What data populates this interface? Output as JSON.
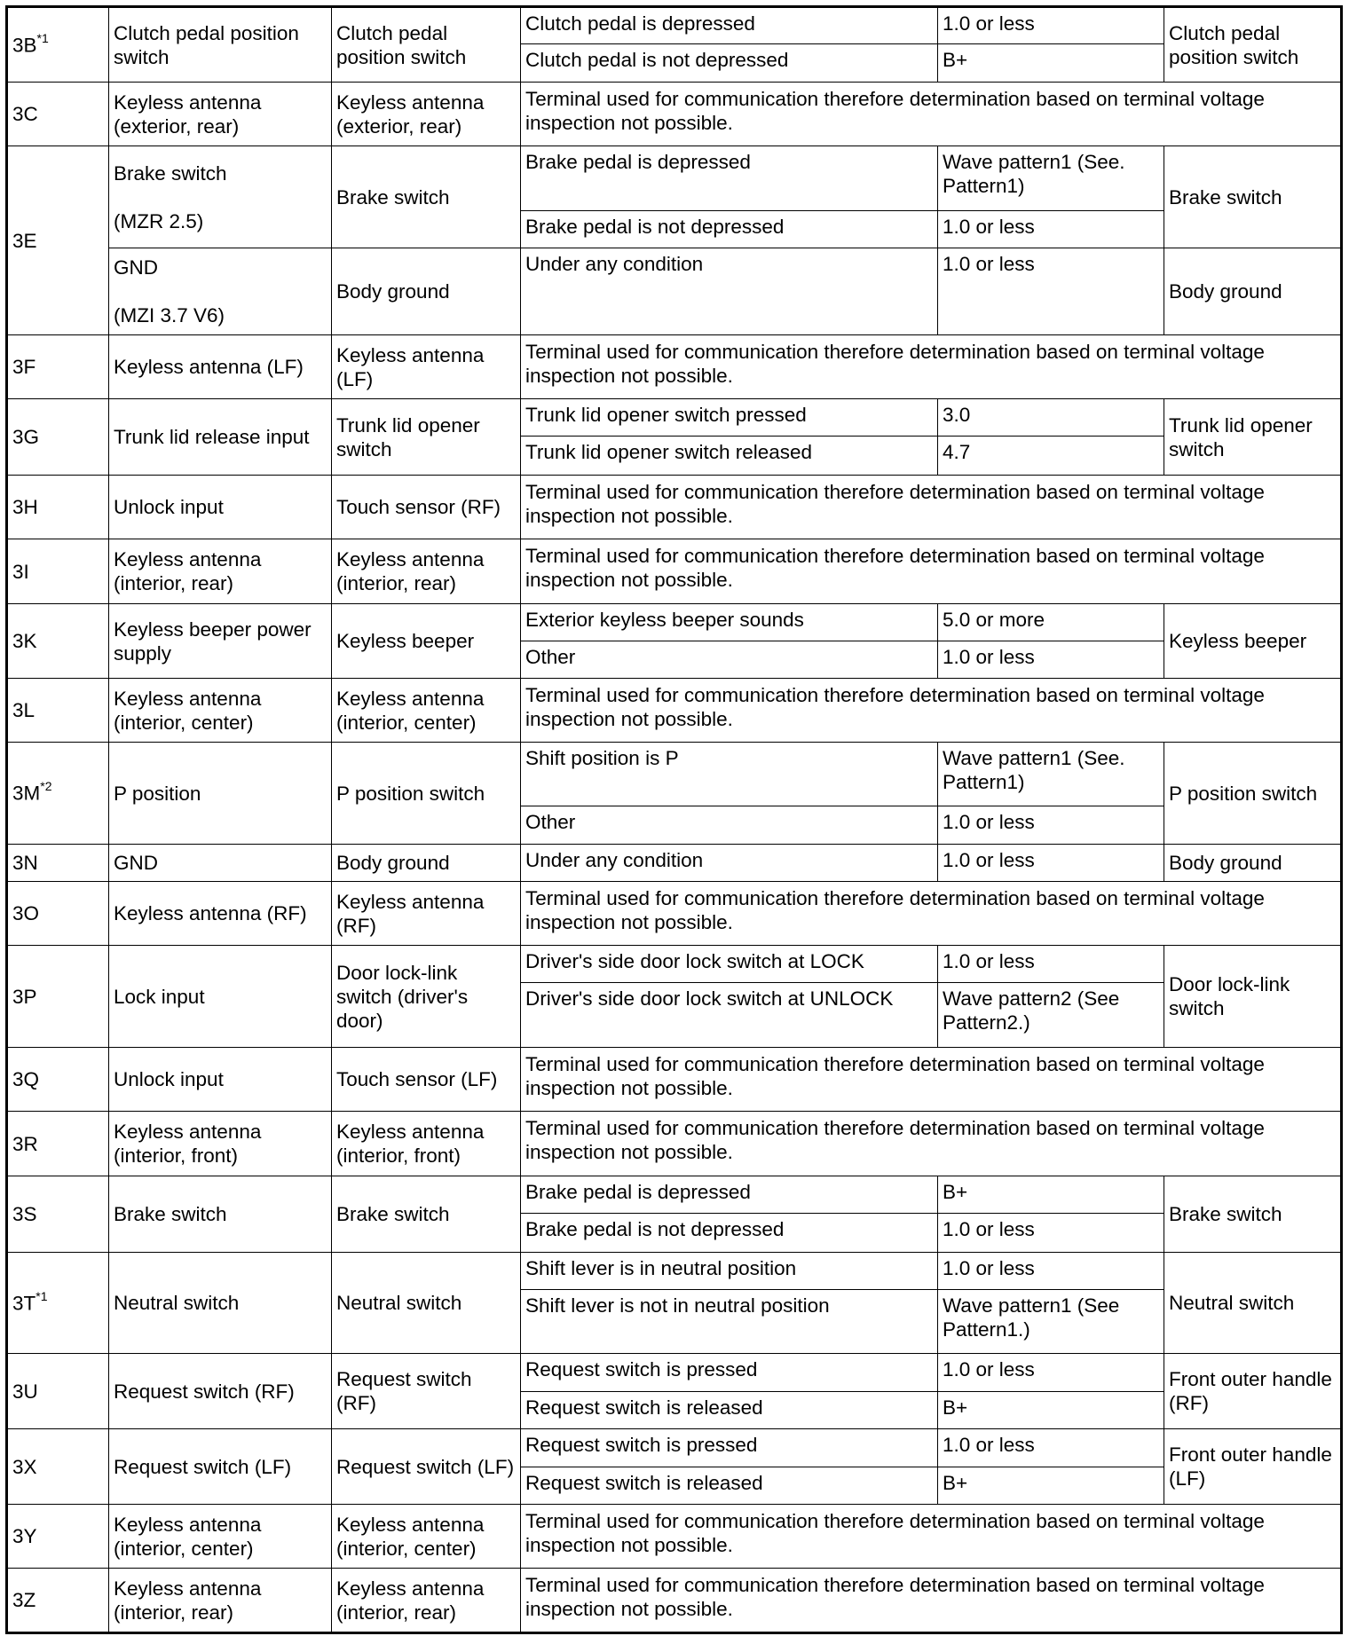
{
  "rows": [
    {
      "pin": "3B",
      "mark": "*1",
      "subs": [
        {
          "name": "Clutch pedal position switch",
          "connected": "Clutch pedal position switch",
          "action": "Clutch pedal position switch",
          "conditions": [
            {
              "condition": "Clutch pedal is depressed",
              "voltage": "1.0 or less"
            },
            {
              "condition": "Clutch pedal is not depressed",
              "voltage": "B+"
            }
          ]
        }
      ]
    },
    {
      "pin": "3C",
      "subs": [
        {
          "name": "Keyless antenna (exterior, rear)",
          "connected": "Keyless antenna (exterior, rear)",
          "note": "Terminal used for communication therefore determination based on terminal voltage inspection not possible."
        }
      ]
    },
    {
      "pin": "3E",
      "subs": [
        {
          "name": "Brake switch\n\n(MZR 2.5)",
          "connected": "Brake switch",
          "action": "Brake switch",
          "conditions": [
            {
              "condition": "Brake pedal is depressed",
              "voltage": "Wave pattern1 (See. Pattern1)"
            },
            {
              "condition": "Brake pedal is not depressed",
              "voltage": "1.0 or less"
            }
          ]
        },
        {
          "name": "GND\n\n(MZI 3.7 V6)",
          "connected": "Body ground",
          "action": "Body ground",
          "conditions": [
            {
              "condition": "Under any condition",
              "voltage": "1.0 or less"
            }
          ]
        }
      ]
    },
    {
      "pin": "3F",
      "subs": [
        {
          "name": "Keyless antenna (LF)",
          "connected": "Keyless antenna (LF)",
          "note": "Terminal used for communication therefore determination based on terminal voltage inspection not possible."
        }
      ]
    },
    {
      "pin": "3G",
      "subs": [
        {
          "name": "Trunk lid release input",
          "connected": "Trunk lid opener switch",
          "action": "Trunk lid opener switch",
          "conditions": [
            {
              "condition": "Trunk lid opener switch pressed",
              "voltage": "3.0"
            },
            {
              "condition": "Trunk lid opener switch released",
              "voltage": "4.7"
            }
          ]
        }
      ]
    },
    {
      "pin": "3H",
      "subs": [
        {
          "name": "Unlock input",
          "connected": "Touch sensor (RF)",
          "note": "Terminal used for communication therefore determination based on terminal voltage inspection not possible."
        }
      ]
    },
    {
      "pin": "3I",
      "subs": [
        {
          "name": "Keyless antenna (interior, rear)",
          "connected": "Keyless antenna (interior, rear)",
          "note": "Terminal used for communication therefore determination based on terminal voltage inspection not possible."
        }
      ]
    },
    {
      "pin": "3K",
      "subs": [
        {
          "name": "Keyless beeper power supply",
          "connected": "Keyless beeper",
          "action": "Keyless beeper",
          "conditions": [
            {
              "condition": "Exterior keyless beeper sounds",
              "voltage": "5.0 or more"
            },
            {
              "condition": "Other",
              "voltage": "1.0 or less"
            }
          ]
        }
      ]
    },
    {
      "pin": "3L",
      "subs": [
        {
          "name": "Keyless antenna (interior, center)",
          "connected": "Keyless antenna (interior, center)",
          "note": "Terminal used for communication therefore determination based on terminal voltage inspection not possible."
        }
      ]
    },
    {
      "pin": "3M",
      "mark": "*2",
      "subs": [
        {
          "name": "P position",
          "connected": "P position switch",
          "action": "P position switch",
          "conditions": [
            {
              "condition": "Shift position is P",
              "voltage": "Wave pattern1 (See. Pattern1)"
            },
            {
              "condition": "Other",
              "voltage": "1.0 or less"
            }
          ]
        }
      ]
    },
    {
      "pin": "3N",
      "subs": [
        {
          "name": "GND",
          "connected": "Body ground",
          "action": "Body ground",
          "conditions": [
            {
              "condition": "Under any condition",
              "voltage": "1.0 or less"
            }
          ]
        }
      ]
    },
    {
      "pin": "3O",
      "subs": [
        {
          "name": "Keyless antenna (RF)",
          "connected": "Keyless antenna (RF)",
          "note": "Terminal used for communication therefore determination based on terminal voltage inspection not possible."
        }
      ]
    },
    {
      "pin": "3P",
      "subs": [
        {
          "name": "Lock input",
          "connected": "Door lock-link switch (driver's door)",
          "action": "Door lock-link switch",
          "conditions": [
            {
              "condition": "Driver's side door lock switch at LOCK",
              "voltage": "1.0 or less"
            },
            {
              "condition": "Driver's side door lock switch at UNLOCK",
              "voltage": "Wave pattern2 (See Pattern2.)"
            }
          ]
        }
      ]
    },
    {
      "pin": "3Q",
      "subs": [
        {
          "name": "Unlock input",
          "connected": "Touch sensor (LF)",
          "note": "Terminal used for communication therefore determination based on terminal voltage inspection not possible."
        }
      ]
    },
    {
      "pin": "3R",
      "subs": [
        {
          "name": "Keyless antenna (interior, front)",
          "connected": "Keyless antenna (interior, front)",
          "note": "Terminal used for communication therefore determination based on terminal voltage inspection not possible."
        }
      ]
    },
    {
      "pin": "3S",
      "subs": [
        {
          "name": "Brake switch",
          "connected": "Brake switch",
          "action": "Brake switch",
          "conditions": [
            {
              "condition": "Brake pedal is depressed",
              "voltage": "B+"
            },
            {
              "condition": "Brake pedal is not depressed",
              "voltage": "1.0 or less"
            }
          ]
        }
      ]
    },
    {
      "pin": "3T",
      "mark": "*1",
      "subs": [
        {
          "name": "Neutral switch",
          "connected": "Neutral switch",
          "action": "Neutral switch",
          "conditions": [
            {
              "condition": "Shift lever is in neutral position",
              "voltage": "1.0 or less"
            },
            {
              "condition": "Shift lever is not in neutral position",
              "voltage": "Wave pattern1 (See Pattern1.)"
            }
          ]
        }
      ]
    },
    {
      "pin": "3U",
      "subs": [
        {
          "name": "Request switch (RF)",
          "connected": "Request switch (RF)",
          "action": "Front outer handle (RF)",
          "conditions": [
            {
              "condition": "Request switch is pressed",
              "voltage": "1.0 or less"
            },
            {
              "condition": "Request switch is released",
              "voltage": "B+"
            }
          ]
        }
      ]
    },
    {
      "pin": "3X",
      "subs": [
        {
          "name": "Request switch (LF)",
          "connected": "Request switch (LF)",
          "action": "Front outer handle (LF)",
          "conditions": [
            {
              "condition": "Request switch is pressed",
              "voltage": "1.0 or less"
            },
            {
              "condition": "Request switch is released",
              "voltage": "B+"
            }
          ]
        }
      ]
    },
    {
      "pin": "3Y",
      "subs": [
        {
          "name": "Keyless antenna (interior, center)",
          "connected": "Keyless antenna (interior, center)",
          "note": "Terminal used for communication therefore determination based on terminal voltage inspection not possible."
        }
      ]
    },
    {
      "pin": "3Z",
      "subs": [
        {
          "name": "Keyless antenna (interior, rear)",
          "connected": "Keyless antenna (interior, rear)",
          "note": "Terminal used for communication therefore determination based on terminal voltage inspection not possible."
        }
      ]
    }
  ]
}
